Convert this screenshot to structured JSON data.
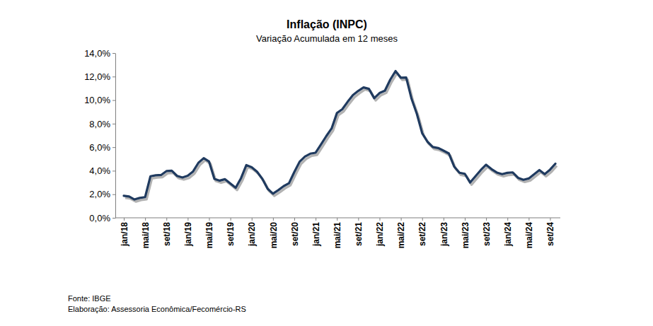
{
  "chart_data": {
    "type": "line",
    "title": "Inflação (INPC)",
    "subtitle": "Variação Acumulada em 12 meses",
    "source": "Fonte: IBGE",
    "elaboration": "Elaboração: Assessoria Econômica/Fecomércio-RS",
    "color": "#1f3a5f",
    "grid": false,
    "categories": [
      "jan/18",
      null,
      null,
      null,
      "mai/18",
      null,
      null,
      null,
      "set/18",
      null,
      null,
      null,
      "jan/19",
      null,
      null,
      null,
      "mai/19",
      null,
      null,
      null,
      "set/19",
      null,
      null,
      null,
      "jan/20",
      null,
      null,
      null,
      "mai/20",
      null,
      null,
      null,
      "set/20",
      null,
      null,
      null,
      "jan/21",
      null,
      null,
      null,
      "mai/21",
      null,
      null,
      null,
      "set/21",
      null,
      null,
      null,
      "jan/22",
      null,
      null,
      null,
      "mai/22",
      null,
      null,
      null,
      "set/22",
      null,
      null,
      null,
      "jan/23",
      null,
      null,
      null,
      "mai/23",
      null,
      null,
      null,
      "set/23",
      null,
      null,
      null,
      "jan/24",
      null,
      null,
      null,
      "mai/24",
      null,
      null,
      null,
      "set/24",
      null
    ],
    "values": [
      1.87,
      1.81,
      1.56,
      1.69,
      1.76,
      3.53,
      3.61,
      3.64,
      3.97,
      4.0,
      3.56,
      3.43,
      3.57,
      3.94,
      4.67,
      5.07,
      4.78,
      3.31,
      3.16,
      3.28,
      2.92,
      2.55,
      3.37,
      4.48,
      4.3,
      3.92,
      3.31,
      2.46,
      2.05,
      2.35,
      2.69,
      2.94,
      3.89,
      4.77,
      5.2,
      5.45,
      5.53,
      6.22,
      6.94,
      7.59,
      8.9,
      9.22,
      9.85,
      10.42,
      10.78,
      11.08,
      10.96,
      10.16,
      10.6,
      10.8,
      11.73,
      12.47,
      11.9,
      11.92,
      10.12,
      8.83,
      7.19,
      6.46,
      6.02,
      5.93,
      5.71,
      5.47,
      4.36,
      3.83,
      3.74,
      3.0,
      3.53,
      4.06,
      4.51,
      4.14,
      3.85,
      3.71,
      3.82,
      3.86,
      3.4,
      3.23,
      3.34,
      3.7,
      4.06,
      3.71,
      4.09,
      4.6
    ],
    "ylim": [
      0,
      14
    ],
    "yticks": [
      {
        "value": 0,
        "label": "0,0%"
      },
      {
        "value": 2,
        "label": "2,0%"
      },
      {
        "value": 4,
        "label": "4,0%"
      },
      {
        "value": 6,
        "label": "6,0%"
      },
      {
        "value": 8,
        "label": "8,0%"
      },
      {
        "value": 10,
        "label": "10,0%"
      },
      {
        "value": 12,
        "label": "12,0%"
      },
      {
        "value": 14,
        "label": "14,0%"
      }
    ]
  }
}
